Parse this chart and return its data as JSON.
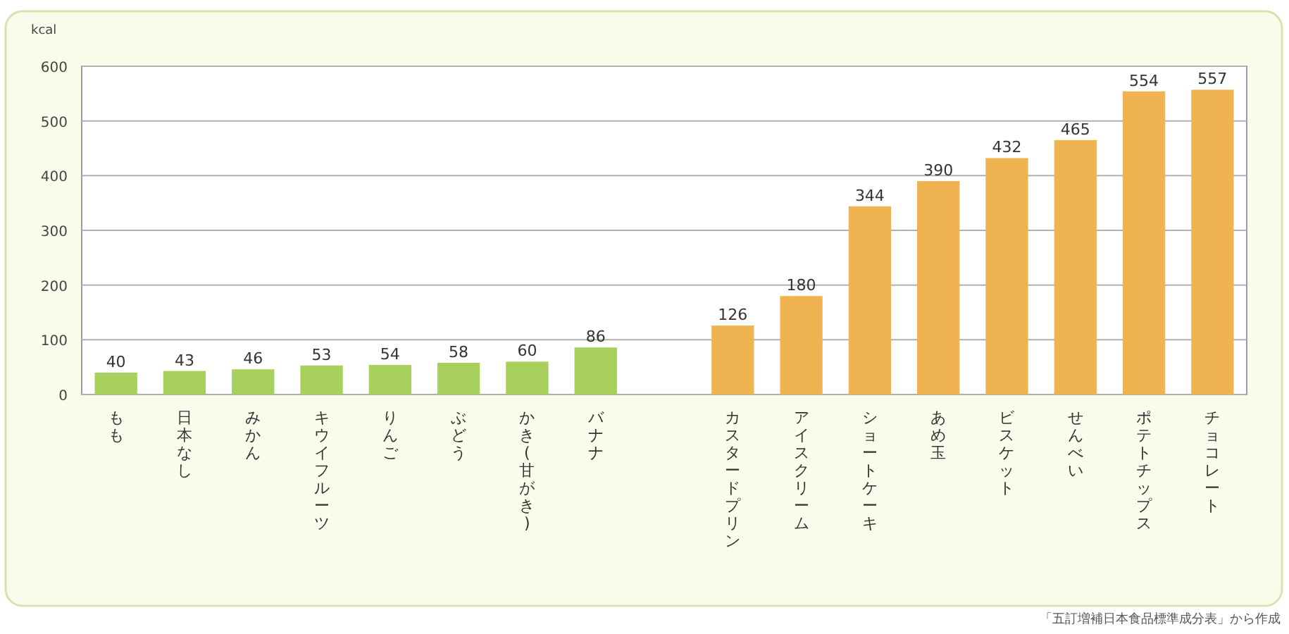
{
  "chart_data": {
    "type": "bar",
    "ylabel": "kcal",
    "categories": [
      "もも",
      "日本なし",
      "みかん",
      "キウイフルーツ",
      "りんご",
      "ぶどう",
      "かき(甘がき)",
      "バナナ",
      null,
      "カスタードプリン",
      "アイスクリーム",
      "ショートケーキ",
      "あめ玉",
      "ビスケット",
      "せんべい",
      "ポテトチップス",
      "チョコレート"
    ],
    "values": [
      40,
      43,
      46,
      53,
      54,
      58,
      60,
      86,
      null,
      126,
      180,
      344,
      390,
      432,
      465,
      554,
      557
    ],
    "colors": [
      "#a8d05c",
      "#a8d05c",
      "#a8d05c",
      "#a8d05c",
      "#a8d05c",
      "#a8d05c",
      "#a8d05c",
      "#a8d05c",
      null,
      "#f0b352",
      "#f0b352",
      "#f0b352",
      "#f0b352",
      "#f0b352",
      "#f0b352",
      "#f0b352",
      "#f0b352"
    ],
    "ylim": [
      0,
      600
    ],
    "yticks": [
      0,
      100,
      200,
      300,
      400,
      500,
      600
    ],
    "grid": "y",
    "data_labels": true,
    "annotations": [
      "「五訂増補日本食品標準成分表」から作成"
    ]
  }
}
